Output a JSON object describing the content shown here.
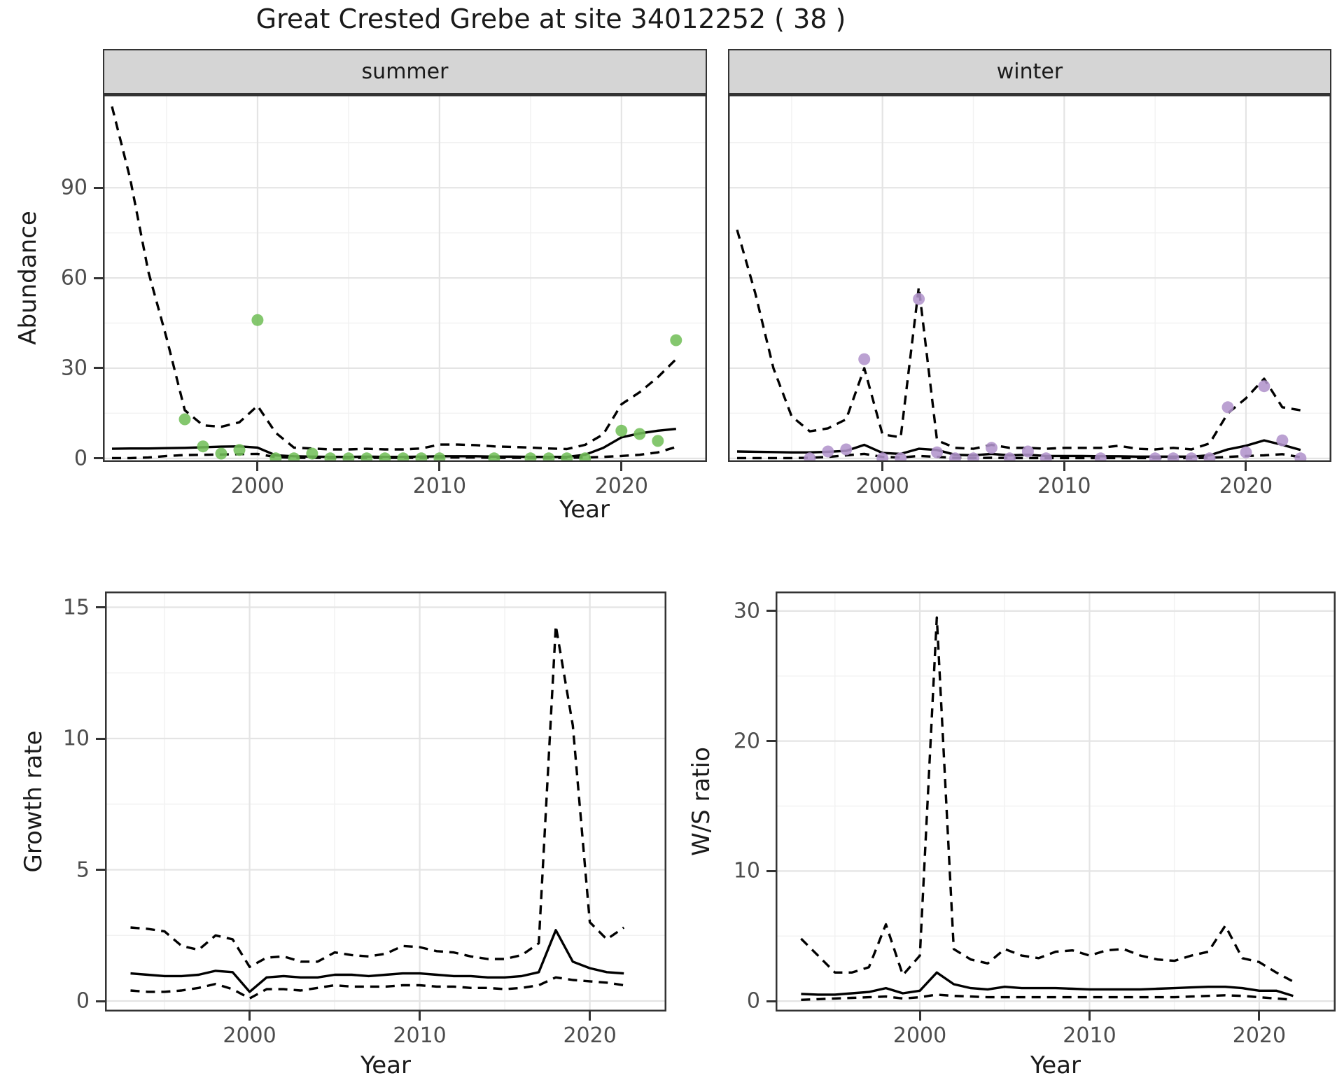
{
  "title": "Great Crested Grebe at site 34012252 ( 38 )",
  "facets": {
    "summer": "summer",
    "winter": "winter"
  },
  "axis_titles": {
    "abundance": "Abundance",
    "year_top": "Year",
    "growth": "Growth rate",
    "year_growth": "Year",
    "ws": "W/S ratio",
    "year_ws": "Year"
  },
  "colors": {
    "summer_point": "#73bf5a",
    "winter_point": "#b294cc",
    "line": "#000000",
    "panel_border": "#333333",
    "grid_major": "#e4e4e4",
    "grid_minor": "#f2f2f2",
    "strip_bg": "#d5d5d5",
    "tick_text": "#4d4d4d"
  },
  "chart_data": [
    {
      "id": "summer",
      "type": "line",
      "title": "summer",
      "xlabel": "Year",
      "ylabel": "Abundance",
      "xlim": [
        1991.5,
        2024.7
      ],
      "ylim": [
        -1.2,
        121
      ],
      "grid": true,
      "legend": "none",
      "xticks": {
        "major": [
          2000,
          2010,
          2020
        ],
        "minor": [
          1995,
          2005,
          2015
        ],
        "labels": [
          "2000",
          "2010",
          "2020"
        ]
      },
      "yticks": {
        "major": [
          0,
          30,
          60,
          90
        ],
        "minor": [
          15,
          45,
          75,
          105
        ],
        "labels": [
          "0",
          "30",
          "60",
          "90"
        ],
        "show": true
      },
      "lines": {
        "x": [
          1992,
          1993,
          1994,
          1995,
          1996,
          1997,
          1998,
          1999,
          2000,
          2001,
          2002,
          2003,
          2004,
          2005,
          2006,
          2007,
          2008,
          2009,
          2010,
          2011,
          2012,
          2013,
          2014,
          2015,
          2016,
          2017,
          2018,
          2019,
          2020,
          2021,
          2022,
          2023
        ],
        "series": [
          {
            "name": "upper-ci",
            "style": "dashed",
            "y": [
              117,
              93,
              62,
              40,
              16,
              11,
              10.5,
              12,
              17.5,
              8.5,
              3.6,
              3.3,
              3.0,
              3.0,
              3.2,
              3.0,
              3.0,
              3.3,
              4.6,
              4.6,
              4.4,
              4.0,
              3.8,
              3.6,
              3.3,
              3.1,
              4.5,
              8,
              18,
              22,
              27,
              33
            ]
          },
          {
            "name": "fit",
            "style": "solid",
            "y": [
              3.2,
              3.3,
              3.3,
              3.4,
              3.5,
              3.7,
              3.9,
              4.0,
              3.6,
              1.0,
              0.7,
              0.6,
              0.5,
              0.5,
              0.6,
              0.5,
              0.5,
              0.6,
              0.7,
              0.7,
              0.7,
              0.6,
              0.6,
              0.5,
              0.5,
              0.5,
              1.2,
              3.5,
              7.0,
              8.3,
              9.2,
              9.8
            ]
          },
          {
            "name": "lower-ci",
            "style": "dashed",
            "y": [
              0.1,
              0.1,
              0.3,
              0.8,
              1.1,
              1.2,
              1.3,
              1.4,
              1.5,
              0.4,
              0.2,
              0.2,
              0.2,
              0.2,
              0.2,
              0.2,
              0.2,
              0.2,
              0.3,
              0.3,
              0.3,
              0.2,
              0.2,
              0.2,
              0.2,
              0.2,
              0.3,
              0.5,
              0.8,
              1.2,
              2.0,
              3.8
            ]
          }
        ]
      },
      "points": {
        "color": "#73bf5a",
        "x": [
          1996,
          1997,
          1998,
          1999,
          2000,
          2001,
          2002,
          2003,
          2004,
          2005,
          2006,
          2007,
          2008,
          2009,
          2010,
          2013,
          2015,
          2016,
          2017,
          2018,
          2020,
          2021,
          2022,
          2023
        ],
        "y": [
          13,
          4,
          1.6,
          2.8,
          46,
          0,
          0,
          1.6,
          0,
          0,
          0,
          0,
          0,
          0,
          0,
          0,
          0,
          0,
          0,
          0,
          9.2,
          8.1,
          5.8,
          39.3
        ]
      }
    },
    {
      "id": "winter",
      "type": "line",
      "title": "winter",
      "xlabel": "Year",
      "ylabel": "Abundance",
      "xlim": [
        1991.5,
        2024.7
      ],
      "ylim": [
        -1.2,
        121
      ],
      "grid": true,
      "legend": "none",
      "xticks": {
        "major": [
          2000,
          2010,
          2020
        ],
        "minor": [
          1995,
          2005,
          2015
        ],
        "labels": [
          "2000",
          "2010",
          "2020"
        ]
      },
      "yticks": {
        "major": [
          0,
          30,
          60,
          90
        ],
        "minor": [
          15,
          45,
          75,
          105
        ],
        "labels": [],
        "show": false
      },
      "lines": {
        "x": [
          1992,
          1993,
          1994,
          1995,
          1996,
          1997,
          1998,
          1999,
          2000,
          2001,
          2002,
          2003,
          2004,
          2005,
          2006,
          2007,
          2008,
          2009,
          2010,
          2011,
          2012,
          2013,
          2014,
          2015,
          2016,
          2017,
          2018,
          2019,
          2020,
          2021,
          2022,
          2023
        ],
        "series": [
          {
            "name": "upper-ci",
            "style": "dashed",
            "y": [
              76,
              55,
              30,
              14,
              9,
              10,
              13,
              30,
              8,
              7,
              57,
              6,
              3.5,
              3.2,
              4.5,
              3.5,
              3.5,
              3.2,
              3.5,
              3.5,
              3.5,
              4.2,
              3.2,
              3.0,
              3.5,
              3.0,
              5,
              15,
              20,
              26.5,
              17,
              16
            ]
          },
          {
            "name": "fit",
            "style": "solid",
            "y": [
              2.3,
              2.2,
              2.1,
              2.0,
              2.0,
              2.2,
              2.5,
              4.5,
              1.8,
              1.5,
              3.2,
              2.8,
              1.2,
              1.0,
              1.5,
              1.0,
              1.2,
              0.8,
              0.8,
              0.8,
              0.7,
              0.7,
              0.6,
              0.6,
              0.6,
              0.6,
              1.0,
              3.0,
              4.2,
              6.0,
              4.5,
              2.8
            ]
          },
          {
            "name": "lower-ci",
            "style": "dashed",
            "y": [
              0.1,
              0.1,
              0.1,
              0.1,
              0.2,
              0.5,
              1.0,
              1.5,
              0.5,
              0.3,
              0.8,
              0.5,
              0.2,
              0.1,
              0.2,
              0.1,
              0.1,
              0.1,
              0.1,
              0.1,
              0.1,
              0.1,
              0.1,
              0.1,
              0.1,
              0.1,
              0.2,
              0.5,
              0.8,
              1.0,
              1.4,
              0.4
            ]
          }
        ]
      },
      "points": {
        "color": "#b294cc",
        "x": [
          1996,
          1997,
          1998,
          1999,
          2000,
          2001,
          2002,
          2003,
          2004,
          2005,
          2006,
          2007,
          2008,
          2009,
          2012,
          2015,
          2016,
          2017,
          2018,
          2019,
          2020,
          2021,
          2022,
          2023
        ],
        "y": [
          0,
          2.3,
          3.0,
          33,
          0,
          0,
          53,
          2.0,
          0,
          0,
          3.5,
          0,
          2.3,
          0,
          0,
          0,
          0,
          0,
          0,
          17,
          2.0,
          24,
          6,
          0
        ]
      }
    },
    {
      "id": "growth",
      "type": "line",
      "title": "",
      "xlabel": "Year",
      "ylabel": "Growth rate",
      "xlim": [
        1991.5,
        2024.5
      ],
      "ylim": [
        -0.4,
        15.6
      ],
      "grid": true,
      "legend": "none",
      "xticks": {
        "major": [
          2000,
          2010,
          2020
        ],
        "minor": [
          1995,
          2005,
          2015
        ],
        "labels": [
          "2000",
          "2010",
          "2020"
        ]
      },
      "yticks": {
        "major": [
          0,
          5,
          10,
          15
        ],
        "minor": [
          2.5,
          7.5,
          12.5
        ],
        "labels": [
          "0",
          "5",
          "10",
          "15"
        ],
        "show": true
      },
      "lines": {
        "x": [
          1993,
          1994,
          1995,
          1996,
          1997,
          1998,
          1999,
          2000,
          2001,
          2002,
          2003,
          2004,
          2005,
          2006,
          2007,
          2008,
          2009,
          2010,
          2011,
          2012,
          2013,
          2014,
          2015,
          2016,
          2017,
          2018,
          2019,
          2020,
          2021,
          2022
        ],
        "series": [
          {
            "name": "upper-ci",
            "style": "dashed",
            "y": [
              2.8,
              2.75,
              2.65,
              2.1,
              1.95,
              2.5,
              2.35,
              1.3,
              1.65,
              1.7,
              1.5,
              1.5,
              1.85,
              1.75,
              1.7,
              1.8,
              2.1,
              2.05,
              1.9,
              1.85,
              1.7,
              1.6,
              1.6,
              1.75,
              2.2,
              14.3,
              10.5,
              3.0,
              2.35,
              2.8
            ]
          },
          {
            "name": "fit",
            "style": "solid",
            "y": [
              1.05,
              1.0,
              0.95,
              0.95,
              1.0,
              1.15,
              1.1,
              0.35,
              0.9,
              0.95,
              0.9,
              0.9,
              1.0,
              1.0,
              0.95,
              1.0,
              1.05,
              1.05,
              1.0,
              0.95,
              0.95,
              0.9,
              0.9,
              0.95,
              1.1,
              2.7,
              1.5,
              1.25,
              1.1,
              1.05
            ]
          },
          {
            "name": "lower-ci",
            "style": "dashed",
            "y": [
              0.4,
              0.35,
              0.35,
              0.4,
              0.5,
              0.65,
              0.45,
              0.1,
              0.45,
              0.45,
              0.4,
              0.5,
              0.6,
              0.55,
              0.55,
              0.55,
              0.6,
              0.6,
              0.55,
              0.55,
              0.5,
              0.5,
              0.45,
              0.5,
              0.6,
              0.9,
              0.8,
              0.75,
              0.7,
              0.6
            ]
          }
        ]
      },
      "points": {
        "color": "",
        "x": [],
        "y": []
      }
    },
    {
      "id": "ws",
      "type": "line",
      "title": "",
      "xlabel": "Year",
      "ylabel": "W/S ratio",
      "xlim": [
        1991.5,
        2024.5
      ],
      "ylim": [
        -0.8,
        31.5
      ],
      "grid": true,
      "legend": "none",
      "xticks": {
        "major": [
          2000,
          2010,
          2020
        ],
        "minor": [
          1995,
          2005,
          2015
        ],
        "labels": [
          "2000",
          "2010",
          "2020"
        ]
      },
      "yticks": {
        "major": [
          0,
          10,
          20,
          30
        ],
        "minor": [
          5,
          15,
          25
        ],
        "labels": [
          "0",
          "10",
          "20",
          "30"
        ],
        "show": true
      },
      "lines": {
        "x": [
          1993,
          1994,
          1995,
          1996,
          1997,
          1998,
          1999,
          2000,
          2001,
          2002,
          2003,
          2004,
          2005,
          2006,
          2007,
          2008,
          2009,
          2010,
          2011,
          2012,
          2013,
          2014,
          2015,
          2016,
          2017,
          2018,
          2019,
          2020,
          2021,
          2022
        ],
        "series": [
          {
            "name": "upper-ci",
            "style": "dashed",
            "y": [
              4.8,
              3.5,
              2.2,
              2.2,
              2.6,
              5.9,
              2.0,
              3.5,
              29.5,
              4.0,
              3.2,
              2.9,
              4.0,
              3.5,
              3.3,
              3.8,
              3.9,
              3.5,
              3.9,
              4.0,
              3.5,
              3.2,
              3.1,
              3.5,
              3.8,
              5.8,
              3.3,
              3.0,
              2.2,
              1.5
            ]
          },
          {
            "name": "fit",
            "style": "solid",
            "y": [
              0.55,
              0.5,
              0.5,
              0.6,
              0.7,
              1.0,
              0.6,
              0.8,
              2.2,
              1.3,
              1.0,
              0.9,
              1.1,
              1.0,
              1.0,
              1.0,
              0.95,
              0.9,
              0.9,
              0.9,
              0.9,
              0.95,
              1.0,
              1.05,
              1.1,
              1.1,
              1.0,
              0.8,
              0.8,
              0.4
            ]
          },
          {
            "name": "lower-ci",
            "style": "dashed",
            "y": [
              0.1,
              0.15,
              0.2,
              0.25,
              0.3,
              0.35,
              0.2,
              0.3,
              0.5,
              0.4,
              0.35,
              0.3,
              0.3,
              0.3,
              0.3,
              0.3,
              0.3,
              0.3,
              0.3,
              0.3,
              0.3,
              0.3,
              0.3,
              0.35,
              0.4,
              0.45,
              0.4,
              0.3,
              0.2,
              0.1
            ]
          }
        ]
      },
      "points": {
        "color": "",
        "x": [],
        "y": []
      }
    }
  ]
}
